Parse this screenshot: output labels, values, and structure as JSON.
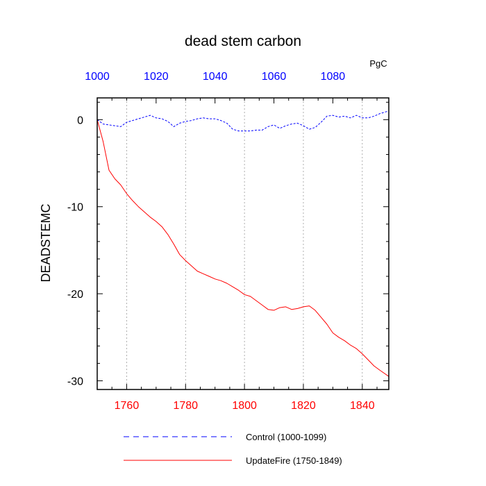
{
  "chart_data": {
    "type": "line",
    "title": "dead stem carbon",
    "units": "PgC",
    "ylabel": "DEADSTEMC",
    "ylim": [
      -31,
      2.5
    ],
    "yticks": [
      0,
      -10,
      -20,
      -30
    ],
    "grid": "vertical dotted lines at bottom-axis ticks",
    "legend_position": "bottom",
    "top_axis": {
      "range": [
        1000,
        1099
      ],
      "ticks": [
        1000,
        1020,
        1040,
        1060,
        1080
      ],
      "color": "#0000ff"
    },
    "bottom_axis": {
      "range": [
        1750,
        1849
      ],
      "ticks": [
        1760,
        1780,
        1800,
        1820,
        1840
      ],
      "color": "#ff0000"
    },
    "series": [
      {
        "name": "Control (1000-1099)",
        "axis": "top",
        "color": "#0000ff",
        "style": "dashed",
        "x": [
          1000,
          1002,
          1004,
          1006,
          1008,
          1010,
          1012,
          1014,
          1016,
          1018,
          1020,
          1022,
          1024,
          1026,
          1028,
          1030,
          1032,
          1034,
          1036,
          1038,
          1040,
          1042,
          1044,
          1046,
          1048,
          1050,
          1052,
          1054,
          1056,
          1058,
          1060,
          1062,
          1064,
          1066,
          1068,
          1070,
          1072,
          1074,
          1076,
          1078,
          1080,
          1082,
          1084,
          1086,
          1088,
          1090,
          1092,
          1094,
          1096,
          1099
        ],
        "y": [
          0.0,
          -0.5,
          -0.6,
          -0.7,
          -0.8,
          -0.3,
          -0.1,
          0.1,
          0.3,
          0.5,
          0.2,
          0.1,
          -0.2,
          -0.8,
          -0.4,
          -0.2,
          -0.1,
          0.1,
          0.2,
          0.1,
          0.1,
          -0.1,
          -0.4,
          -1.1,
          -1.3,
          -1.3,
          -1.3,
          -1.2,
          -1.2,
          -0.8,
          -0.6,
          -1.0,
          -0.7,
          -0.5,
          -0.4,
          -0.7,
          -1.1,
          -0.9,
          -0.3,
          0.4,
          0.5,
          0.3,
          0.4,
          0.2,
          0.5,
          0.2,
          0.2,
          0.4,
          0.7,
          1.0
        ]
      },
      {
        "name": "UpdateFire (1750-1849)",
        "axis": "bottom",
        "color": "#ff0000",
        "style": "solid",
        "x": [
          1750,
          1752,
          1754,
          1756,
          1758,
          1760,
          1762,
          1764,
          1766,
          1768,
          1770,
          1772,
          1774,
          1776,
          1778,
          1780,
          1782,
          1784,
          1786,
          1788,
          1790,
          1792,
          1794,
          1796,
          1798,
          1800,
          1802,
          1804,
          1806,
          1808,
          1810,
          1812,
          1814,
          1816,
          1818,
          1820,
          1822,
          1824,
          1826,
          1828,
          1830,
          1832,
          1834,
          1836,
          1838,
          1840,
          1842,
          1844,
          1846,
          1849
        ],
        "y": [
          0.0,
          -2.5,
          -5.8,
          -6.8,
          -7.5,
          -8.5,
          -9.3,
          -10.0,
          -10.6,
          -11.2,
          -11.7,
          -12.3,
          -13.2,
          -14.3,
          -15.5,
          -16.2,
          -16.8,
          -17.4,
          -17.7,
          -18.0,
          -18.3,
          -18.5,
          -18.8,
          -19.2,
          -19.6,
          -20.1,
          -20.3,
          -20.8,
          -21.3,
          -21.8,
          -21.9,
          -21.6,
          -21.5,
          -21.8,
          -21.7,
          -21.5,
          -21.4,
          -21.9,
          -22.7,
          -23.5,
          -24.5,
          -25.0,
          -25.4,
          -25.9,
          -26.3,
          -26.9,
          -27.6,
          -28.3,
          -28.8,
          -29.5
        ]
      }
    ]
  }
}
